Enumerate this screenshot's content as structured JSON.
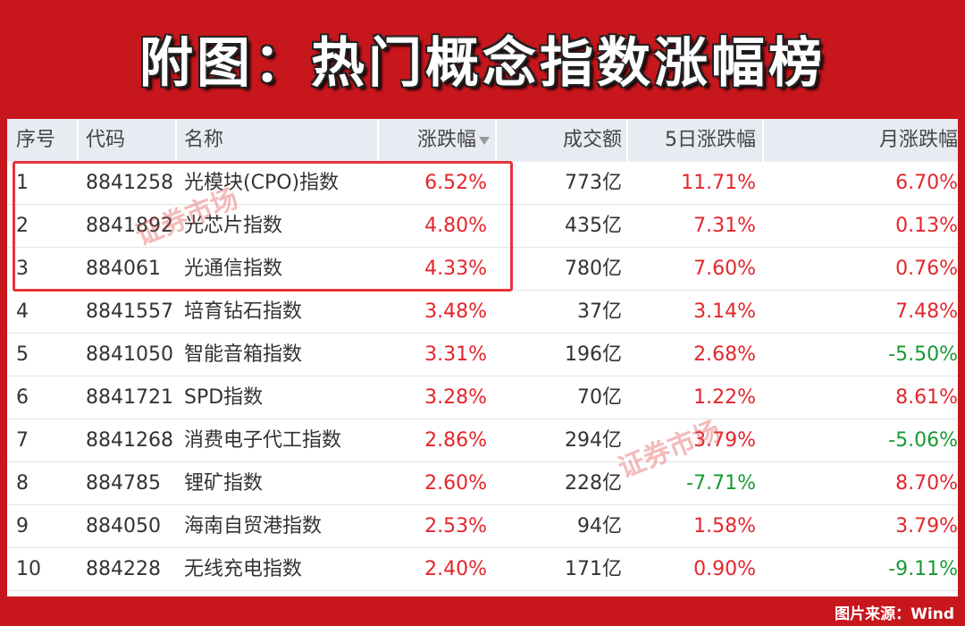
{
  "header": {
    "title": "附图：热门概念指数涨幅榜"
  },
  "table": {
    "columns": [
      "序号",
      "代码",
      "名称",
      "涨跌幅",
      "成交额",
      "5日涨跌幅",
      "月涨跌幅"
    ],
    "rows": [
      [
        "1",
        "8841258",
        "光模块(CPO)指数",
        "6.52%",
        "773亿",
        "11.71%",
        "6.70%"
      ],
      [
        "2",
        "8841892",
        "光芯片指数",
        "4.80%",
        "435亿",
        "7.31%",
        "0.13%"
      ],
      [
        "3",
        "884061",
        "光通信指数",
        "4.33%",
        "780亿",
        "7.60%",
        "0.76%"
      ],
      [
        "4",
        "8841557",
        "培育钻石指数",
        "3.48%",
        "37亿",
        "3.14%",
        "7.48%"
      ],
      [
        "5",
        "8841050",
        "智能音箱指数",
        "3.31%",
        "196亿",
        "2.68%",
        "-5.50%"
      ],
      [
        "6",
        "8841721",
        "SPD指数",
        "3.28%",
        "70亿",
        "1.22%",
        "8.61%"
      ],
      [
        "7",
        "8841268",
        "消费电子代工指数",
        "2.86%",
        "294亿",
        "3.79%",
        "-5.06%"
      ],
      [
        "8",
        "884785",
        "锂矿指数",
        "2.60%",
        "228亿",
        "-7.71%",
        "8.70%"
      ],
      [
        "9",
        "884050",
        "海南自贸港指数",
        "2.53%",
        "94亿",
        "1.58%",
        "3.79%"
      ],
      [
        "10",
        "884228",
        "无线充电指数",
        "2.40%",
        "171亿",
        "0.90%",
        "-9.11%"
      ]
    ]
  },
  "watermarks": [
    "证券市场",
    "证券市场"
  ],
  "footer": {
    "source": "图片来源：Wind"
  }
}
